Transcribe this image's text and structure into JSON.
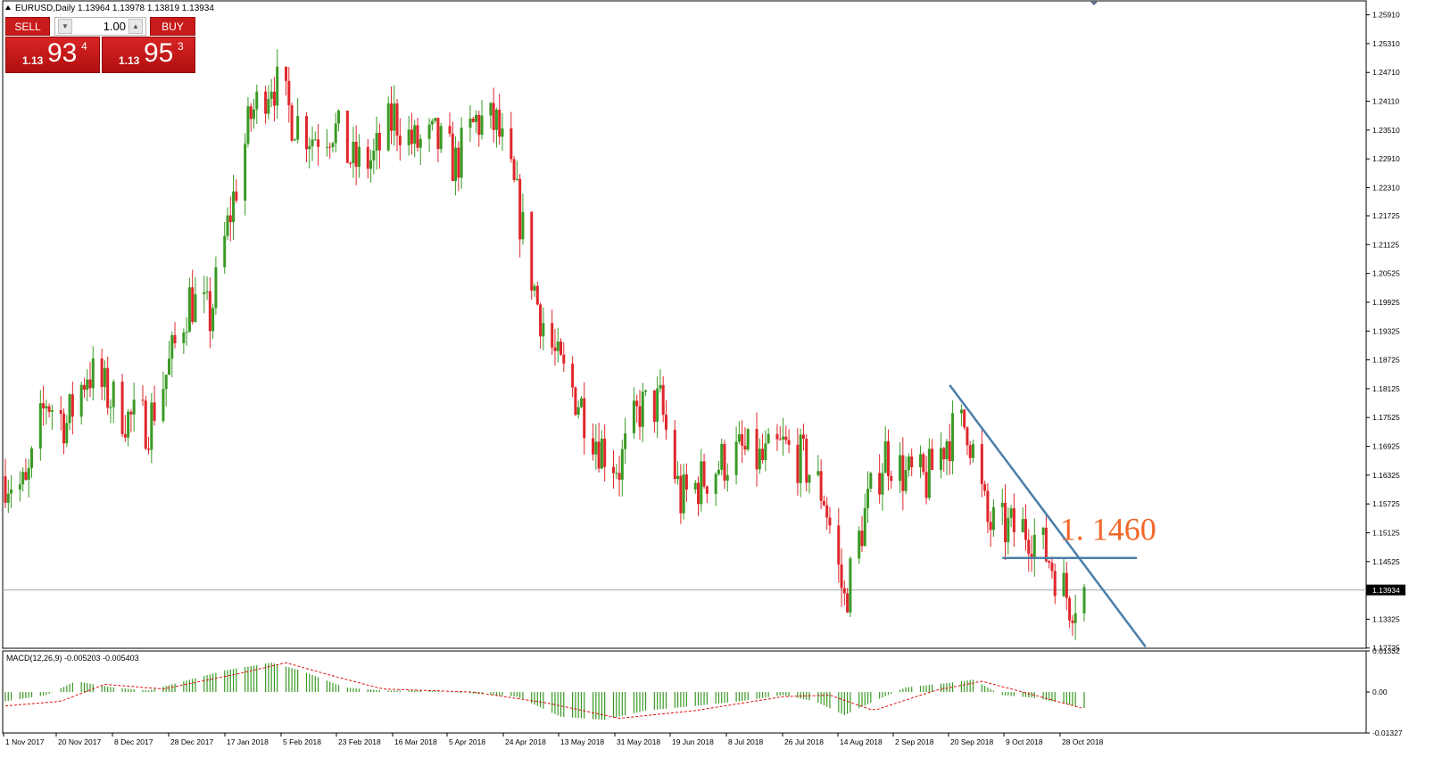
{
  "header": {
    "title": "EURUSD,Daily  1.13964 1.13978 1.13819 1.13934"
  },
  "trade_panel": {
    "sell_label": "SELL",
    "buy_label": "BUY",
    "lot": "1.00",
    "sell": {
      "small": "1.13",
      "big": "93",
      "sup": "4"
    },
    "buy": {
      "small": "1.13",
      "big": "95",
      "sup": "3"
    }
  },
  "colors": {
    "bull": "#3a9a24",
    "bear": "#e0262a",
    "trendline": "#4a7ea8",
    "annotation": "#f2672a",
    "signal": "#e01010"
  },
  "chart_data": [
    {
      "type": "candlestick",
      "symbol": "EURUSD",
      "timeframe": "Daily",
      "ylim": [
        1.1272,
        1.262
      ],
      "y_ticks": [
        "1.25910",
        "1.25310",
        "1.24710",
        "1.24110",
        "1.23510",
        "1.22910",
        "1.22310",
        "1.21725",
        "1.21125",
        "1.20525",
        "1.19925",
        "1.19325",
        "1.18725",
        "1.18125",
        "1.17525",
        "1.16925",
        "1.16325",
        "1.15725",
        "1.15125",
        "1.14525",
        "1.13325",
        "1.12725"
      ],
      "x_ticks": [
        "1 Nov 2017",
        "20 Nov 2017",
        "8 Dec 2017",
        "28 Dec 2017",
        "17 Jan 2018",
        "5 Feb 2018",
        "23 Feb 2018",
        "16 Mar 2018",
        "5 Apr 2018",
        "24 Apr 2018",
        "13 May 2018",
        "31 May 2018",
        "19 Jun 2018",
        "8 Jul 2018",
        "26 Jul 2018",
        "14 Aug 2018",
        "2 Sep 2018",
        "20 Sep 2018",
        "9 Oct 2018",
        "28 Oct 2018"
      ],
      "current_price": "1.13934",
      "close_path": [
        {
          "date": "2017-11-01",
          "close": 1.163
        },
        {
          "date": "2017-11-08",
          "close": 1.16
        },
        {
          "date": "2017-11-15",
          "close": 1.179
        },
        {
          "date": "2017-11-22",
          "close": 1.174
        },
        {
          "date": "2017-11-29",
          "close": 1.185
        },
        {
          "date": "2017-12-06",
          "close": 1.18
        },
        {
          "date": "2017-12-13",
          "close": 1.175
        },
        {
          "date": "2017-12-20",
          "close": 1.174
        },
        {
          "date": "2017-12-27",
          "close": 1.186
        },
        {
          "date": "2018-01-03",
          "close": 1.2
        },
        {
          "date": "2018-01-10",
          "close": 1.196
        },
        {
          "date": "2018-01-17",
          "close": 1.218
        },
        {
          "date": "2018-01-24",
          "close": 1.238
        },
        {
          "date": "2018-01-31",
          "close": 1.246
        },
        {
          "date": "2018-02-07",
          "close": 1.238
        },
        {
          "date": "2018-02-14",
          "close": 1.234
        },
        {
          "date": "2018-02-21",
          "close": 1.236
        },
        {
          "date": "2018-02-28",
          "close": 1.228
        },
        {
          "date": "2018-03-07",
          "close": 1.229
        },
        {
          "date": "2018-03-14",
          "close": 1.238
        },
        {
          "date": "2018-03-21",
          "close": 1.232
        },
        {
          "date": "2018-03-28",
          "close": 1.233
        },
        {
          "date": "2018-04-04",
          "close": 1.228
        },
        {
          "date": "2018-04-11",
          "close": 1.237
        },
        {
          "date": "2018-04-18",
          "close": 1.236
        },
        {
          "date": "2018-04-25",
          "close": 1.22
        },
        {
          "date": "2018-05-02",
          "close": 1.199
        },
        {
          "date": "2018-05-09",
          "close": 1.186
        },
        {
          "date": "2018-05-16",
          "close": 1.179
        },
        {
          "date": "2018-05-23",
          "close": 1.17
        },
        {
          "date": "2018-05-30",
          "close": 1.165
        },
        {
          "date": "2018-06-06",
          "close": 1.177
        },
        {
          "date": "2018-06-13",
          "close": 1.178
        },
        {
          "date": "2018-06-20",
          "close": 1.158
        },
        {
          "date": "2018-06-27",
          "close": 1.162
        },
        {
          "date": "2018-07-04",
          "close": 1.166
        },
        {
          "date": "2018-07-11",
          "close": 1.168
        },
        {
          "date": "2018-07-18",
          "close": 1.166
        },
        {
          "date": "2018-07-25",
          "close": 1.169
        },
        {
          "date": "2018-08-01",
          "close": 1.166
        },
        {
          "date": "2018-08-08",
          "close": 1.159
        },
        {
          "date": "2018-08-15",
          "close": 1.137
        },
        {
          "date": "2018-08-22",
          "close": 1.155
        },
        {
          "date": "2018-08-29",
          "close": 1.168
        },
        {
          "date": "2018-09-05",
          "close": 1.163
        },
        {
          "date": "2018-09-12",
          "close": 1.162
        },
        {
          "date": "2018-09-19",
          "close": 1.171
        },
        {
          "date": "2018-09-26",
          "close": 1.174
        },
        {
          "date": "2018-10-03",
          "close": 1.153
        },
        {
          "date": "2018-10-10",
          "close": 1.152
        },
        {
          "date": "2018-10-17",
          "close": 1.152
        },
        {
          "date": "2018-10-24",
          "close": 1.146
        },
        {
          "date": "2018-10-31",
          "close": 1.137
        },
        {
          "date": "2018-11-05",
          "close": 1.1393
        }
      ],
      "annotations": [
        {
          "type": "trendline",
          "from": {
            "date": "2018-09-20",
            "price": 1.182
          },
          "to": {
            "date": "2018-11-26",
            "price": 1.1275
          }
        },
        {
          "type": "horizontal_segment",
          "price": 1.146,
          "from_date": "2018-10-08",
          "to_date": "2018-11-23"
        },
        {
          "type": "text",
          "text": "1. 1460",
          "date": "2018-11-15",
          "price": 1.152
        }
      ]
    },
    {
      "type": "histogram",
      "title": "MACD(12,26,9) -0.005203 -0.005403",
      "ylim": [
        -0.01327,
        0.01332
      ],
      "y_ticks": [
        "0.01332",
        "0.00",
        "-0.01327"
      ],
      "macd_path": [
        {
          "date": "2017-11-01",
          "value": -0.003
        },
        {
          "date": "2017-11-15",
          "value": -0.001
        },
        {
          "date": "2017-11-25",
          "value": 0.0035
        },
        {
          "date": "2017-12-08",
          "value": 0.0015
        },
        {
          "date": "2017-12-20",
          "value": 0.0005
        },
        {
          "date": "2018-01-01",
          "value": 0.0035
        },
        {
          "date": "2018-01-15",
          "value": 0.007
        },
        {
          "date": "2018-01-31",
          "value": 0.0095
        },
        {
          "date": "2018-02-10",
          "value": 0.007
        },
        {
          "date": "2018-02-25",
          "value": 0.0015
        },
        {
          "date": "2018-03-10",
          "value": 0.0005
        },
        {
          "date": "2018-03-25",
          "value": 0.0005
        },
        {
          "date": "2018-04-10",
          "value": -0.0005
        },
        {
          "date": "2018-04-25",
          "value": -0.0015
        },
        {
          "date": "2018-05-10",
          "value": -0.008
        },
        {
          "date": "2018-05-25",
          "value": -0.009
        },
        {
          "date": "2018-06-08",
          "value": -0.006
        },
        {
          "date": "2018-06-25",
          "value": -0.0045
        },
        {
          "date": "2018-07-10",
          "value": -0.003
        },
        {
          "date": "2018-07-25",
          "value": -0.001
        },
        {
          "date": "2018-08-05",
          "value": -0.003
        },
        {
          "date": "2018-08-15",
          "value": -0.0075
        },
        {
          "date": "2018-08-25",
          "value": -0.003
        },
        {
          "date": "2018-09-05",
          "value": 0.0015
        },
        {
          "date": "2018-09-20",
          "value": 0.003
        },
        {
          "date": "2018-09-28",
          "value": 0.004
        },
        {
          "date": "2018-10-08",
          "value": -0.001
        },
        {
          "date": "2018-10-20",
          "value": -0.002
        },
        {
          "date": "2018-11-05",
          "value": -0.0052
        }
      ],
      "signal_path": [
        {
          "date": "2017-11-01",
          "value": -0.0045
        },
        {
          "date": "2017-11-20",
          "value": -0.003
        },
        {
          "date": "2017-12-05",
          "value": 0.0025
        },
        {
          "date": "2017-12-25",
          "value": 0.001
        },
        {
          "date": "2018-01-20",
          "value": 0.006
        },
        {
          "date": "2018-02-05",
          "value": 0.0095
        },
        {
          "date": "2018-02-20",
          "value": 0.0055
        },
        {
          "date": "2018-03-10",
          "value": 0.001
        },
        {
          "date": "2018-04-10",
          "value": 0.0
        },
        {
          "date": "2018-05-05",
          "value": -0.0035
        },
        {
          "date": "2018-05-30",
          "value": -0.0085
        },
        {
          "date": "2018-06-25",
          "value": -0.006
        },
        {
          "date": "2018-07-25",
          "value": -0.0015
        },
        {
          "date": "2018-08-10",
          "value": -0.001
        },
        {
          "date": "2018-08-25",
          "value": -0.006
        },
        {
          "date": "2018-09-15",
          "value": 0.0005
        },
        {
          "date": "2018-10-01",
          "value": 0.0035
        },
        {
          "date": "2018-10-15",
          "value": 0.0
        },
        {
          "date": "2018-11-05",
          "value": -0.0054
        }
      ]
    }
  ]
}
